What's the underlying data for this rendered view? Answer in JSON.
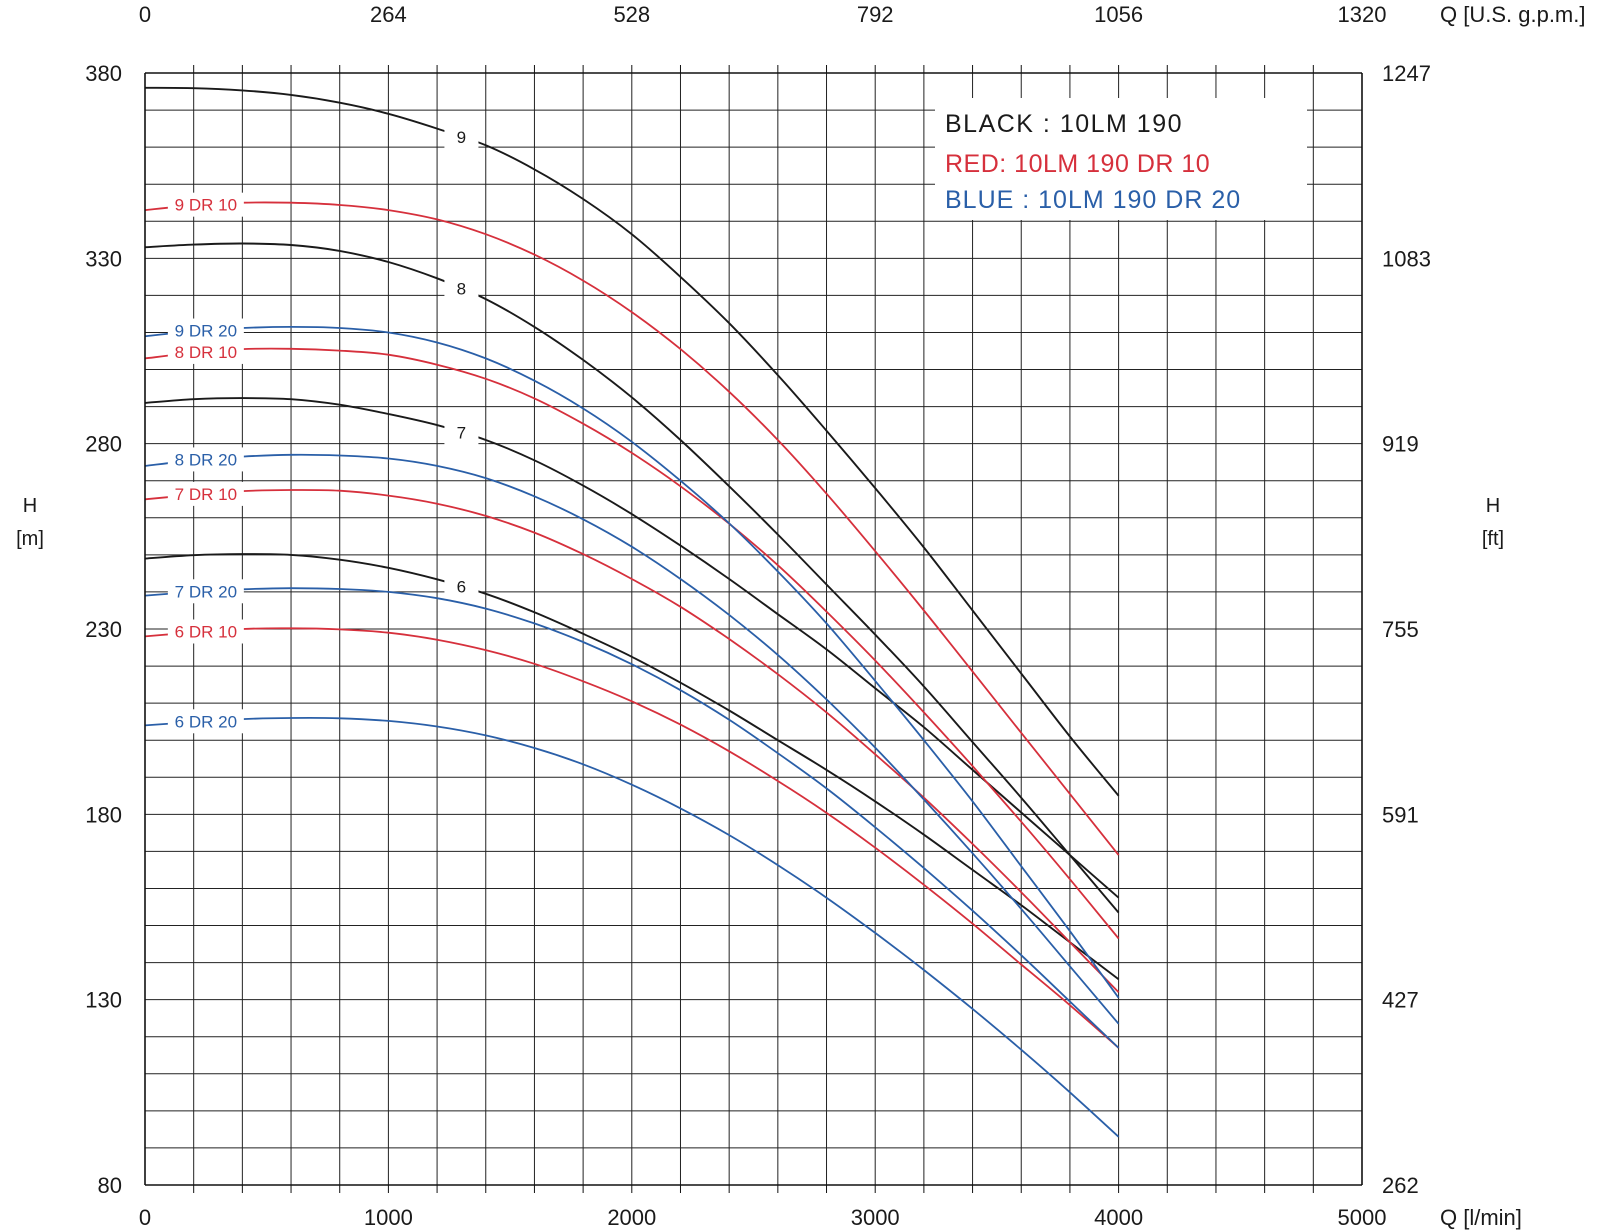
{
  "chart_data": {
    "type": "line",
    "x": [
      0,
      200,
      400,
      600,
      800,
      1000,
      1200,
      1400,
      1600,
      1800,
      2000,
      2200,
      2400,
      2600,
      2800,
      3000,
      3200,
      3400,
      3600,
      3800,
      4000
    ],
    "xlim": [
      0,
      5000
    ],
    "ylim": [
      80,
      380
    ],
    "y2lim": [
      262,
      1247
    ],
    "x_axis": {
      "bottom_ticks": [
        "0",
        "1000",
        "2000",
        "3000",
        "4000",
        "5000"
      ],
      "bottom_unit": "Q [l/min]",
      "top_ticks": [
        "0",
        "264",
        "528",
        "792",
        "1056",
        "1320"
      ],
      "top_unit": "Q [U.S. g.p.m.]"
    },
    "y_axis": {
      "left_ticks": [
        "80",
        "130",
        "180",
        "230",
        "280",
        "330",
        "380"
      ],
      "left_label": "H",
      "left_unit": "[m]",
      "right_ticks": [
        "262",
        "427",
        "591",
        "755",
        "919",
        "1083",
        "1247"
      ],
      "right_label": "H",
      "right_unit": "[ft]"
    },
    "grid": true,
    "legend": {
      "placement": "top-right",
      "entries": [
        {
          "text": "BLACK : 10LM 190",
          "color": "#1a1a1a"
        },
        {
          "text": "RED: 10LM 190 DR 10",
          "color": "#d6303c"
        },
        {
          "text": "BLUE : 10LM 190 DR 20",
          "color": "#2a5fa8"
        }
      ]
    },
    "colors": {
      "black": "#1a1a1a",
      "red": "#d6303c",
      "blue": "#2a5fa8"
    },
    "series": [
      {
        "name": "9",
        "color": "black",
        "values": [
          376,
          375.9,
          375.3,
          374.1,
          372,
          369,
          365,
          360.5,
          354,
          346,
          336.5,
          325,
          312.5,
          298.5,
          283.5,
          268,
          252,
          235,
          218,
          201,
          185
        ]
      },
      {
        "name": "8",
        "color": "black",
        "values": [
          333,
          333.7,
          334,
          333.6,
          332,
          329,
          324.6,
          319,
          311.5,
          302.6,
          292.5,
          281,
          268.5,
          255.5,
          242,
          228.5,
          214.5,
          199.5,
          184.5,
          169,
          153.5
        ]
      },
      {
        "name": "7",
        "color": "black",
        "values": [
          291,
          292,
          292.3,
          292,
          290.5,
          288,
          285,
          281,
          275.5,
          268.7,
          261,
          252.5,
          243.5,
          234,
          224.5,
          214,
          203.5,
          192,
          180.5,
          169,
          157.5
        ]
      },
      {
        "name": "6",
        "color": "black",
        "values": [
          249,
          249.9,
          250.2,
          250,
          248.7,
          246.5,
          243.4,
          239.5,
          234.5,
          228.7,
          222.5,
          215.5,
          208,
          200,
          192,
          183.5,
          174.5,
          165,
          155.5,
          145.5,
          135.5
        ]
      },
      {
        "name": "9 DR 10",
        "color": "red",
        "values": [
          343,
          344.3,
          345,
          345,
          344.4,
          343,
          340.5,
          336.5,
          331,
          324,
          315.5,
          305.5,
          294,
          281,
          266.5,
          251,
          235,
          218.5,
          202,
          185.5,
          169
        ]
      },
      {
        "name": "8 DR 10",
        "color": "red",
        "values": [
          303,
          304.5,
          305.5,
          305.6,
          305.1,
          304,
          301.3,
          297.5,
          292.2,
          285.4,
          277.5,
          268.5,
          258.4,
          247.2,
          234.7,
          221.5,
          207.5,
          193,
          178,
          162.5,
          146.5
        ]
      },
      {
        "name": "7 DR 10",
        "color": "red",
        "values": [
          265,
          266.2,
          267.2,
          267.5,
          267.3,
          266,
          263.8,
          260.5,
          256,
          250.2,
          243.5,
          236,
          227.3,
          217.8,
          207.5,
          196.2,
          184.5,
          172,
          159,
          145.5,
          132
        ]
      },
      {
        "name": "6 DR 10",
        "color": "red",
        "values": [
          228,
          229.1,
          230,
          230.2,
          229.9,
          229,
          227.1,
          224.3,
          220.6,
          215.9,
          210.5,
          204.2,
          197,
          189,
          180.4,
          171,
          161,
          150.5,
          139.5,
          128.5,
          117
        ]
      },
      {
        "name": "9 DR 20",
        "color": "blue",
        "values": [
          309,
          310.3,
          311.2,
          311.5,
          311.2,
          310,
          307.3,
          303,
          297,
          289.5,
          280.5,
          270,
          258.5,
          245.5,
          231.5,
          216,
          200,
          183.5,
          166,
          148.5,
          130.5
        ]
      },
      {
        "name": "8 DR 20",
        "color": "blue",
        "values": [
          274,
          275.5,
          276.5,
          277,
          276.8,
          276,
          274,
          270.7,
          265.8,
          259.6,
          252.2,
          243.5,
          233.8,
          223,
          211,
          198,
          184,
          169.5,
          154.5,
          139,
          123.5
        ]
      },
      {
        "name": "7 DR 20",
        "color": "blue",
        "values": [
          239,
          240,
          240.7,
          241,
          240.8,
          240,
          238.3,
          235.5,
          231.5,
          226.5,
          220.5,
          213.5,
          205.5,
          196.5,
          187,
          176.5,
          165.5,
          154,
          142,
          129.5,
          117
        ]
      },
      {
        "name": "6 DR 20",
        "color": "blue",
        "values": [
          204,
          204.9,
          205.7,
          206,
          205.9,
          205.2,
          203.7,
          201.3,
          197.9,
          193.5,
          188,
          181.6,
          174.4,
          166.3,
          157.5,
          148,
          138,
          127.5,
          116.5,
          105,
          93
        ]
      }
    ]
  }
}
